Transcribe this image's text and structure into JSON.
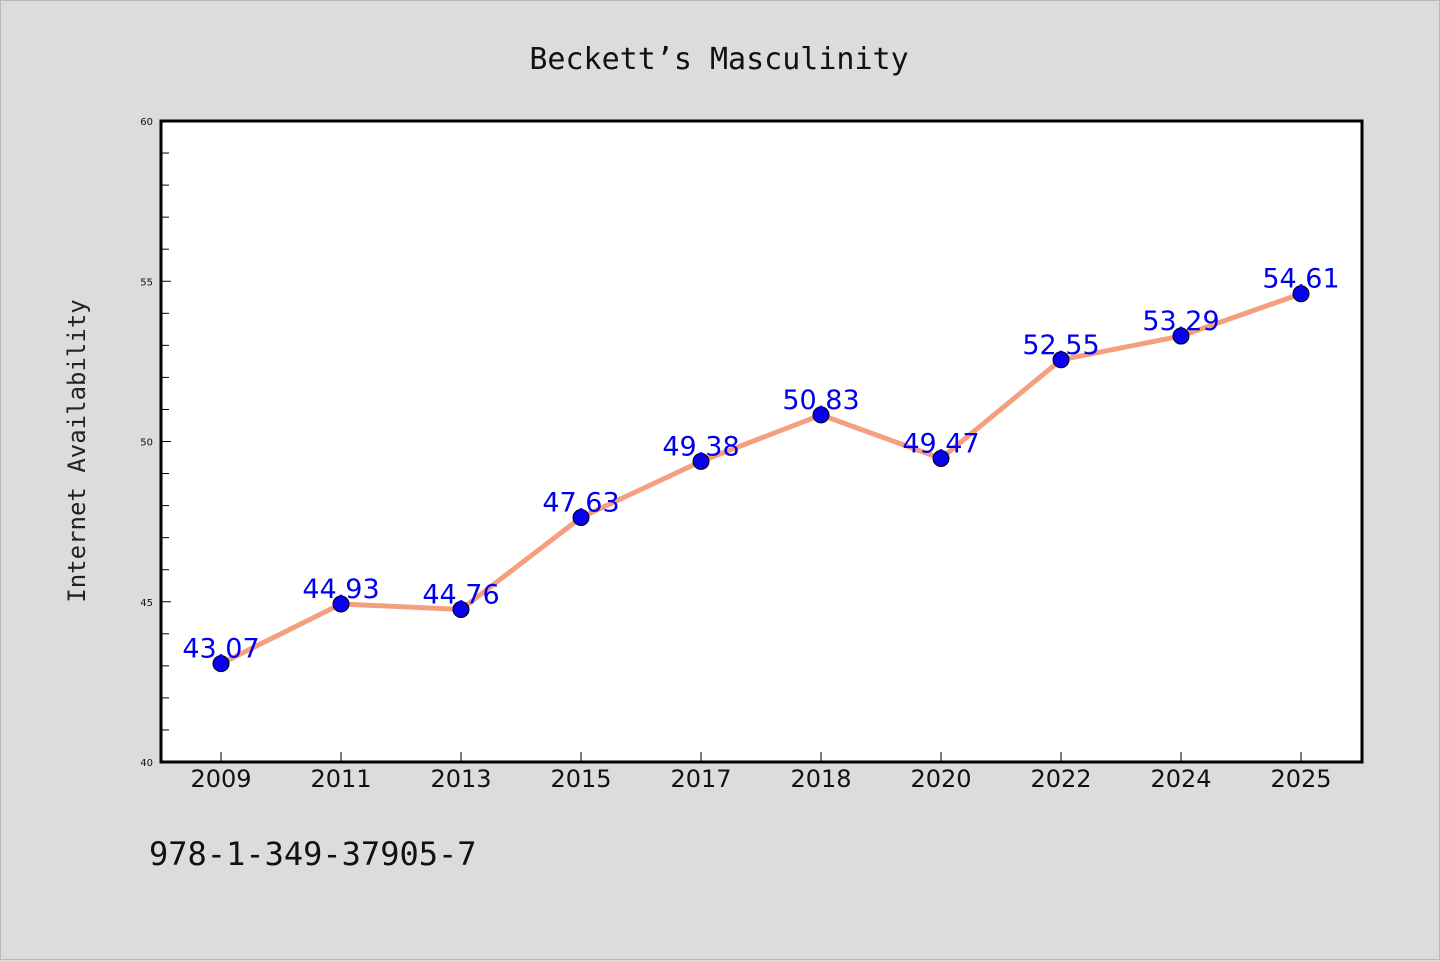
{
  "chart_data": {
    "type": "line",
    "title": "Beckett’s Masculinity",
    "xlabel": "",
    "ylabel": "Internet Availability",
    "categories": [
      "2009",
      "2011",
      "2013",
      "2015",
      "2017",
      "2018",
      "2020",
      "2022",
      "2024",
      "2025"
    ],
    "values": [
      43.07,
      44.93,
      44.76,
      47.63,
      49.38,
      50.83,
      49.47,
      52.55,
      53.29,
      54.61
    ],
    "ylim": [
      40,
      60
    ],
    "yticks": [
      40,
      45,
      50,
      55,
      60
    ],
    "y_minor_step": 1,
    "grid": false,
    "legend": "none",
    "line_color": "#f4a07f",
    "marker_color": "#0a00f0",
    "label_color": "#0000ee"
  },
  "footer": {
    "isbn": "978-1-349-37905-7"
  }
}
